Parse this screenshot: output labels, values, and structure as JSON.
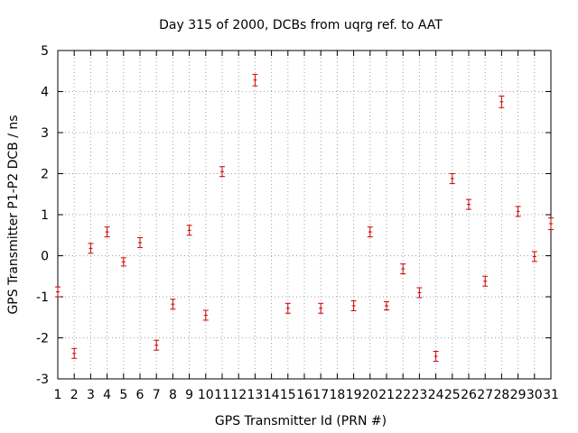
{
  "chart_data": {
    "type": "scatter",
    "title": "Day 315 of 2000, DCBs from uqrg ref. to AAT",
    "xlabel": "GPS Transmitter Id (PRN #)",
    "ylabel": "GPS Transmitter P1-P2 DCB / ns",
    "xlim": [
      1,
      31
    ],
    "ylim": [
      -3,
      5
    ],
    "x_ticks": [
      "1",
      "2",
      "3",
      "4",
      "5",
      "6",
      "7",
      "8",
      "9",
      "10",
      "11",
      "12",
      "13",
      "14",
      "15",
      "16",
      "17",
      "18",
      "19",
      "20",
      "21",
      "22",
      "23",
      "24",
      "25",
      "26",
      "27",
      "28",
      "29",
      "30",
      "31"
    ],
    "y_ticks": [
      "-3",
      "-2",
      "-1",
      "0",
      "1",
      "2",
      "3",
      "4",
      "5"
    ],
    "grid": true,
    "series_color": "#cc0000",
    "points": [
      {
        "prn": 1,
        "dcb": -0.88,
        "err": 0.12
      },
      {
        "prn": 2,
        "dcb": -2.38,
        "err": 0.12
      },
      {
        "prn": 3,
        "dcb": 0.18,
        "err": 0.12
      },
      {
        "prn": 4,
        "dcb": 0.58,
        "err": 0.12
      },
      {
        "prn": 5,
        "dcb": -0.15,
        "err": 0.1
      },
      {
        "prn": 6,
        "dcb": 0.32,
        "err": 0.12
      },
      {
        "prn": 7,
        "dcb": -2.18,
        "err": 0.12
      },
      {
        "prn": 8,
        "dcb": -1.18,
        "err": 0.12
      },
      {
        "prn": 9,
        "dcb": 0.62,
        "err": 0.12
      },
      {
        "prn": 10,
        "dcb": -1.45,
        "err": 0.12
      },
      {
        "prn": 11,
        "dcb": 2.05,
        "err": 0.12
      },
      {
        "prn": 13,
        "dcb": 4.28,
        "err": 0.14
      },
      {
        "prn": 15,
        "dcb": -1.28,
        "err": 0.12
      },
      {
        "prn": 17,
        "dcb": -1.28,
        "err": 0.12
      },
      {
        "prn": 19,
        "dcb": -1.22,
        "err": 0.12
      },
      {
        "prn": 20,
        "dcb": 0.58,
        "err": 0.12
      },
      {
        "prn": 21,
        "dcb": -1.22,
        "err": 0.1
      },
      {
        "prn": 22,
        "dcb": -0.32,
        "err": 0.12
      },
      {
        "prn": 23,
        "dcb": -0.9,
        "err": 0.12
      },
      {
        "prn": 24,
        "dcb": -2.45,
        "err": 0.12
      },
      {
        "prn": 25,
        "dcb": 1.88,
        "err": 0.12
      },
      {
        "prn": 26,
        "dcb": 1.25,
        "err": 0.12
      },
      {
        "prn": 27,
        "dcb": -0.62,
        "err": 0.12
      },
      {
        "prn": 28,
        "dcb": 3.75,
        "err": 0.14
      },
      {
        "prn": 29,
        "dcb": 1.08,
        "err": 0.12
      },
      {
        "prn": 30,
        "dcb": -0.02,
        "err": 0.12
      },
      {
        "prn": 31,
        "dcb": 0.78,
        "err": 0.14
      }
    ]
  }
}
